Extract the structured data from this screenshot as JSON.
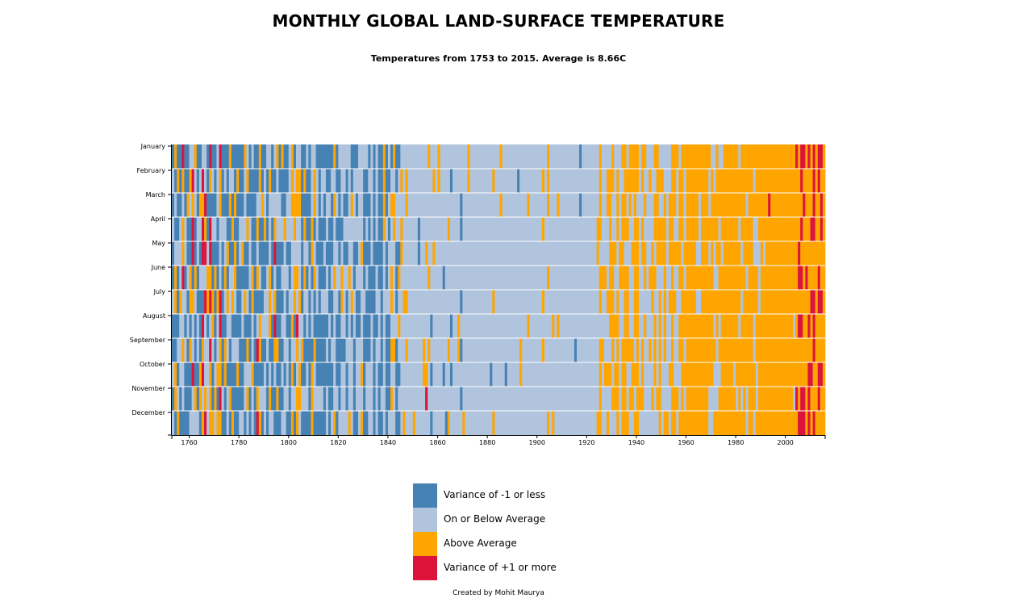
{
  "title": "MONTHLY GLOBAL LAND-SURFACE TEMPERATURE",
  "subtitle": "Temperatures from 1753 to 2015. Average is 8.66C",
  "footer": "Created by Mohit Maurya",
  "colors": {
    "cold": "#4682B4",
    "below": "#B0C4DE",
    "above": "#FFA500",
    "hot": "#DC143C",
    "separator": "#ffffff",
    "axis": "#000000"
  },
  "legend": [
    {
      "label": "Variance of -1 or less",
      "color": "#4682B4"
    },
    {
      "label": "On or Below Average",
      "color": "#B0C4DE"
    },
    {
      "label": "Above Average",
      "color": "#FFA500"
    },
    {
      "label": "Variance of +1 or more",
      "color": "#DC143C"
    }
  ],
  "chart_data": {
    "type": "heatmap",
    "title": "MONTHLY GLOBAL LAND-SURFACE TEMPERATURE",
    "subtitle": "Temperatures from 1753 to 2015. Average is 8.66C",
    "x_domain": [
      1753,
      2015
    ],
    "x_ticks": [
      1760,
      1780,
      1800,
      1820,
      1840,
      1860,
      1880,
      1900,
      1920,
      1940,
      1960,
      1980,
      2000
    ],
    "y_categories": [
      "January",
      "February",
      "March",
      "April",
      "May",
      "June",
      "July",
      "August",
      "September",
      "October",
      "November",
      "December"
    ],
    "grid": false,
    "legend_position": "bottom-center",
    "categories_scale": [
      "Variance of -1 or less",
      "On or Below Average",
      "Above Average",
      "Variance of +1 or more"
    ],
    "regimes": [
      {
        "from": 1753,
        "to": 1790,
        "probs": [
          0.45,
          0.17,
          0.23,
          0.15
        ]
      },
      {
        "from": 1790,
        "to": 1815,
        "probs": [
          0.48,
          0.24,
          0.22,
          0.06
        ]
      },
      {
        "from": 1815,
        "to": 1845,
        "probs": [
          0.45,
          0.33,
          0.18,
          0.04
        ]
      },
      {
        "from": 1845,
        "to": 1870,
        "probs": [
          0.2,
          0.62,
          0.15,
          0.03
        ]
      },
      {
        "from": 1870,
        "to": 1895,
        "probs": [
          0.1,
          0.78,
          0.12,
          0.0
        ]
      },
      {
        "from": 1895,
        "to": 1925,
        "probs": [
          0.05,
          0.75,
          0.2,
          0.0
        ]
      },
      {
        "from": 1925,
        "to": 1960,
        "probs": [
          0.01,
          0.5,
          0.48,
          0.01
        ]
      },
      {
        "from": 1960,
        "to": 1990,
        "probs": [
          0.0,
          0.3,
          0.69,
          0.01
        ]
      },
      {
        "from": 1990,
        "to": 2004,
        "probs": [
          0.0,
          0.05,
          0.85,
          0.1
        ]
      },
      {
        "from": 2004,
        "to": 2016,
        "probs": [
          0.0,
          0.02,
          0.6,
          0.38
        ]
      }
    ]
  }
}
